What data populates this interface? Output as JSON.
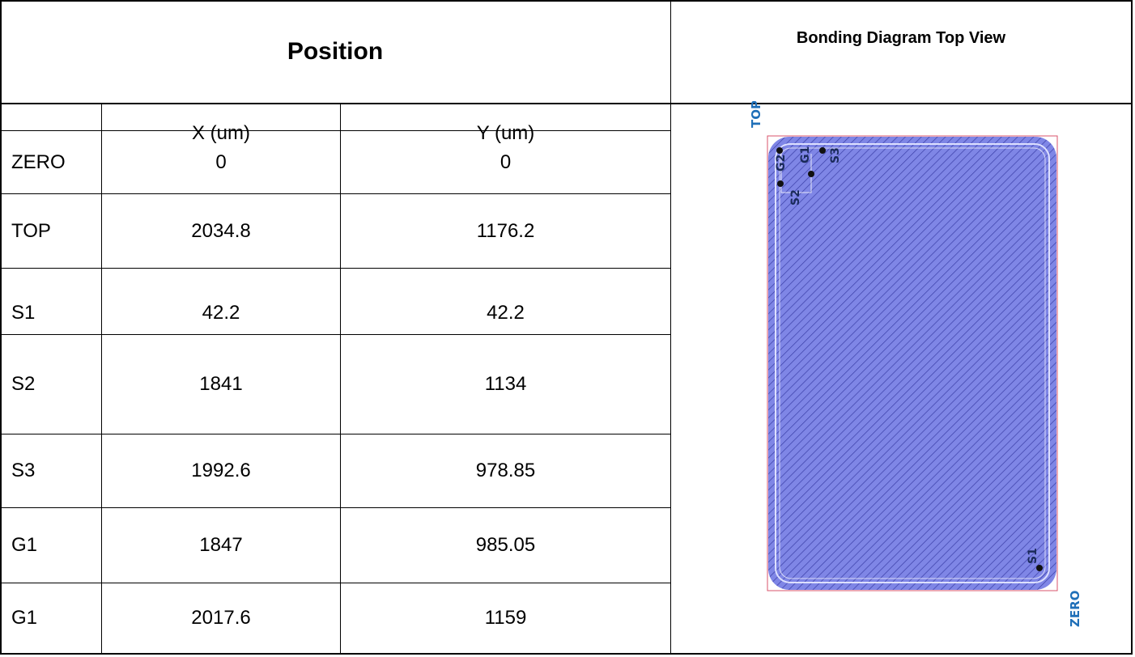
{
  "header": {
    "position_title": "Position",
    "diagram_title": "Bonding Diagram Top View"
  },
  "columns": {
    "blank": "",
    "x": "X (um)",
    "y": "Y (um)"
  },
  "rows": [
    {
      "name": "ZERO",
      "x": "0",
      "y": "0"
    },
    {
      "name": "TOP",
      "x": "2034.8",
      "y": "1176.2"
    },
    {
      "name": "S1",
      "x": "42.2",
      "y": "42.2"
    },
    {
      "name": "S2",
      "x": "1841",
      "y": "1134"
    },
    {
      "name": "S3",
      "x": "1992.6",
      "y": "978.85"
    },
    {
      "name": "G1",
      "x": "1847",
      "y": "985.05"
    },
    {
      "name": "G1",
      "x": "2017.6",
      "y": "1159"
    }
  ],
  "diagram": {
    "corner_top": "TOP",
    "corner_zero": "ZERO",
    "pads": [
      "G2",
      "G1",
      "S3",
      "S2",
      "S1"
    ],
    "colors": {
      "die_fill": "#7f86e6",
      "hatch": "#3b3fa8",
      "outline": "#d9536b",
      "label_blue": "#1f6fb8",
      "pad_label": "#1a2a5a"
    }
  }
}
